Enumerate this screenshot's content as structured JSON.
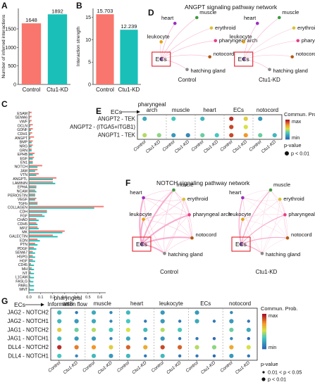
{
  "panel_letters": {
    "a": "A",
    "b": "B",
    "c": "C",
    "d": "D",
    "e": "E",
    "f": "F",
    "g": "G"
  },
  "colors": {
    "control": "#F8766D",
    "ctu1": "#1ABFB8",
    "edge": "#f49ac1"
  },
  "chart_data": [
    {
      "panel": "A",
      "type": "bar",
      "categories": [
        "Control",
        "Ctu1-KD"
      ],
      "values": [
        1648,
        1892
      ],
      "value_labels": [
        "1648",
        "1892"
      ],
      "ylabel": "Number of inferred interactions",
      "yticks": [
        "0",
        "500",
        "1000",
        "1500"
      ],
      "ylim": [
        0,
        2050
      ]
    },
    {
      "panel": "B",
      "type": "bar",
      "categories": [
        "Control",
        "Ctu1-KD"
      ],
      "values": [
        15.703,
        12.239
      ],
      "value_labels": [
        "15.703",
        "12.239"
      ],
      "ylabel": "Interaction strength",
      "yticks": [
        "0",
        "5",
        "10",
        "15"
      ],
      "ylim": [
        0,
        17
      ]
    },
    {
      "panel": "C",
      "type": "bar",
      "orientation": "horizontal",
      "xlabel": "Information flow",
      "xticks": [
        "0.0",
        "0.1",
        "0.2",
        "0.3",
        "0.4",
        "0.5",
        "0.6"
      ],
      "xlim": [
        0,
        0.65
      ],
      "highlighted": [
        "ANGPT",
        "NOTCH"
      ],
      "categories": [
        "ESAM",
        "SEMA6",
        "VWF",
        "OCLN",
        "GDNF",
        "CDH1",
        "ANGPT",
        "BMP",
        "NRG",
        "GRN",
        "EPHB",
        "EGF",
        "EN1",
        "NOTCH",
        "JAM",
        "VTN",
        "ANGPTL",
        "LAMININ",
        "EPHA",
        "NCAM",
        "PERIOSTIN",
        "VEGF",
        "TGFb",
        "COLLAGEN",
        "CDH",
        "FGF",
        "CHAD",
        "CDH5",
        "MPZ",
        "MK",
        "GALECTIN",
        "EDN",
        "PTN",
        "PDGF",
        "SEMA7",
        "HSPG",
        "HGF",
        "CD45",
        "MH",
        "NT",
        "L1CAM",
        "FASLG",
        "PARs",
        "WNT"
      ],
      "series": [
        {
          "name": "Control",
          "values": [
            0.02,
            0.02,
            0.02,
            0.03,
            0.03,
            0.025,
            0.04,
            0.03,
            0.03,
            0.02,
            0.045,
            0.04,
            0.03,
            0.11,
            0.07,
            0.08,
            0.23,
            0.2,
            0.06,
            0.05,
            0.05,
            0.06,
            0.07,
            0.63,
            0.15,
            0.11,
            0.06,
            0.06,
            0.07,
            0.3,
            0.2,
            0.07,
            0.05,
            0.04,
            0.03,
            0.03,
            0.03,
            0.015,
            0.02,
            0.015,
            0.01,
            0.01,
            0.008,
            0.005
          ]
        },
        {
          "name": "Ctu1-KD",
          "values": [
            0,
            0.005,
            0.008,
            0.01,
            0.015,
            0.01,
            0.01,
            0.02,
            0.02,
            0.02,
            0.03,
            0.03,
            0.03,
            0.07,
            0.05,
            0.06,
            0.2,
            0.22,
            0.06,
            0.06,
            0.05,
            0.05,
            0.07,
            0.55,
            0.15,
            0.13,
            0.08,
            0.07,
            0.08,
            0.28,
            0.24,
            0.09,
            0.07,
            0.06,
            0.05,
            0.05,
            0.05,
            0.04,
            0.04,
            0.04,
            0.04,
            0.035,
            0.04,
            0.04
          ]
        }
      ]
    },
    {
      "panel": "E",
      "type": "scatter",
      "subtype": "dotplot",
      "source_label": "ECs",
      "groups": [
        "pharyngeal arch",
        "muscle",
        "heart",
        "ECs",
        "notocord"
      ],
      "conditions": [
        "Control",
        "Ctu1-KD"
      ],
      "rows": [
        "ANGPT2 - TEK",
        "ANGPT2 - (ITGA5+ITGB1)",
        "ANGPT1 - TEK"
      ],
      "legend_title": "Commun. Prob.",
      "scale_labels": [
        "max",
        "min"
      ],
      "pvalue_title": "p-value",
      "pvalue_levels": [
        "p < 0.01"
      ],
      "values": [
        [
          0.25,
          null,
          0.35,
          null,
          0.3,
          null,
          0.95,
          0.6,
          0.2,
          null
        ],
        [
          null,
          null,
          null,
          null,
          null,
          null,
          0.9,
          0.55,
          null,
          null
        ],
        [
          0.5,
          0.45,
          0.2,
          0.15,
          0.4,
          0.35,
          0.9,
          0.75,
          0.4,
          0.3
        ]
      ]
    },
    {
      "panel": "G",
      "type": "scatter",
      "subtype": "dotplot",
      "source_label": "ECs",
      "groups": [
        "pharyngeal arch",
        "muscle",
        "heart",
        "leukocyte",
        "ECs",
        "notocord"
      ],
      "conditions": [
        "Control",
        "Ctu1-KD"
      ],
      "rows": [
        "JAG2 - NOTCH2",
        "JAG2 - NOTCH1",
        "JAG1 - NOTCH2",
        "JAG1 - NOTCH1",
        "DLL4 - NOTCH2",
        "DLL4 - NOTCH1"
      ],
      "legend_title": "Commun. Prob.",
      "scale_labels": [
        "max",
        "min"
      ],
      "pvalue_title": "p-value",
      "pvalue_levels": [
        "0.01 < p < 0.05",
        "p < 0.01"
      ],
      "values": [
        [
          0.3,
          0.1,
          0.25,
          0.15,
          0.3,
          null,
          0.2,
          null,
          0.2,
          null,
          0.15,
          null
        ],
        [
          0.3,
          0.2,
          0.25,
          0.15,
          0.35,
          0.1,
          0.2,
          0.1,
          0.25,
          0.1,
          0.2,
          0.1
        ],
        [
          0.6,
          0.4,
          0.5,
          0.35,
          0.55,
          0.3,
          0.5,
          0.35,
          null,
          null,
          0.4,
          0.25
        ],
        [
          0.3,
          0.2,
          0.2,
          0.15,
          0.25,
          0.1,
          0.2,
          0.1,
          0.1,
          0.05,
          0.15,
          0.05
        ],
        [
          0.95,
          0.8,
          0.75,
          0.6,
          0.85,
          0.7,
          0.9,
          0.85,
          0.5,
          0.45,
          0.7,
          0.55
        ],
        [
          0.35,
          0.15,
          0.3,
          0.2,
          0.3,
          0.1,
          0.3,
          0.1,
          0.1,
          0.05,
          0.2,
          0.1
        ]
      ]
    }
  ],
  "networks": {
    "angpt_title": "ANGPT signaling pathway network",
    "notch_title": "NOTCH signaling pathway network",
    "nodes": [
      "heart",
      "muscle",
      "erythroid",
      "leukocyte",
      "pharyngeal arch",
      "ECs",
      "notocord",
      "hatching gland"
    ],
    "node_colors": {
      "heart": "#9a2fbf",
      "muscle": "#3d9a3d",
      "erythroid": "#d7c232",
      "leukocyte": "#e6a10e",
      "pharyngeal arch": "#e83e8c",
      "ECs": "#7b4ea3",
      "notocord": "#b55a11",
      "hatching gland": "#8a8a8a"
    },
    "conditions": [
      "Control",
      "Ctu1-KD"
    ]
  }
}
